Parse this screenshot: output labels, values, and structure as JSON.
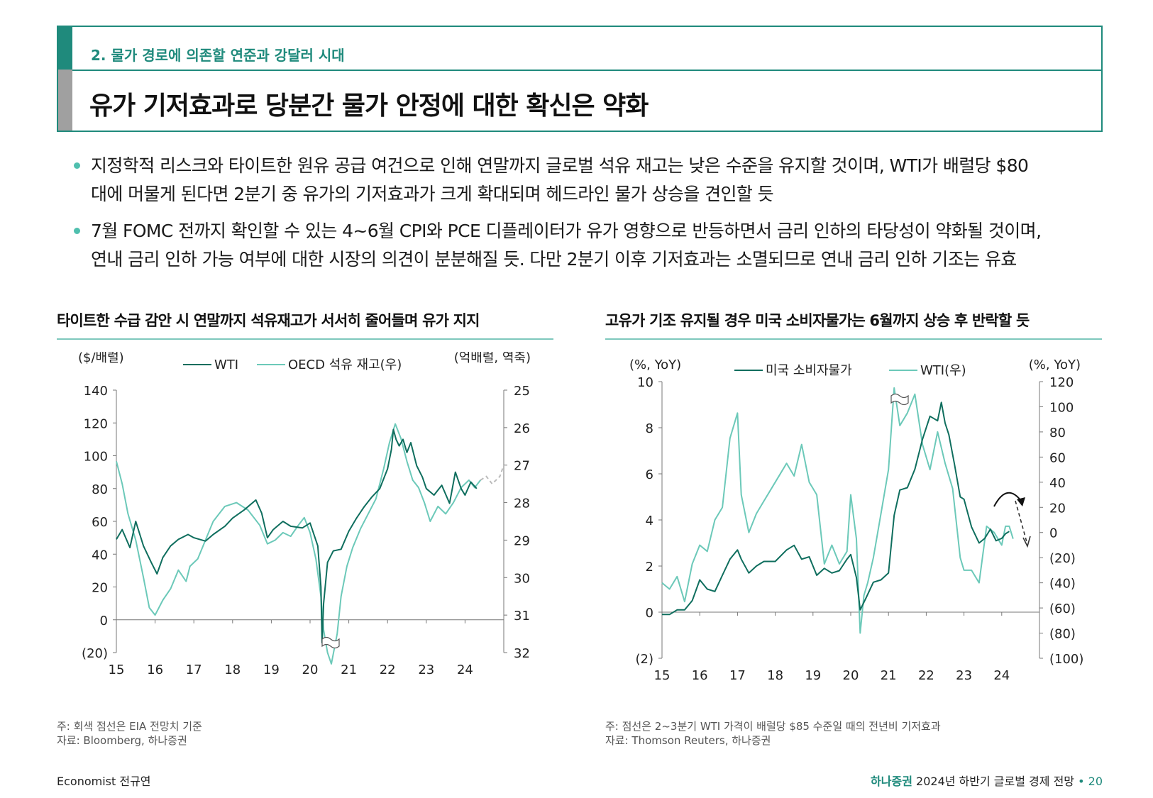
{
  "header": {
    "section": "2. 물가 경로에 의존할 연준과 강달러 시대",
    "title": "유가 기저효과로 당분간 물가 안정에 대한 확신은 약화"
  },
  "bullets": [
    {
      "line1": "지정학적 리스크와 타이트한 원유 공급 여건으로 인해 연말까지 글로벌 석유 재고는 낮은 수준을 유지할 것이며, WTI가 배럴당 $80",
      "line2": "대에 머물게 된다면 2분기 중 유가의 기저효과가 크게 확대되며 헤드라인 물가 상승을 견인할 듯"
    },
    {
      "line1": "7월 FOMC 전까지 확인할 수 있는 4~6월 CPI와 PCE 디플레이터가 유가 영향으로 반등하면서 금리 인하의 타당성이 약화될 것이며,",
      "line2": "연내 금리 인하 가능 여부에 대한 시장의 의견이 분분해질 듯. 다만 2분기 이후 기저효과는 소멸되므로 연내 금리 인하 기조는 유효"
    }
  ],
  "colors": {
    "accent": "#1f8a7c",
    "dark_series": "#0f6e5e",
    "light_series": "#6cc9b9",
    "forecast": "#bbbbbb"
  },
  "chart_data": [
    {
      "type": "line",
      "title": "타이트한 수급 감안 시 연말까지 석유재고가 서서히 줄어들며 유가 지지",
      "left_unit": "($/배럴)",
      "right_unit": "(억배럴, 역축)",
      "x_ticks": [
        "15",
        "16",
        "17",
        "18",
        "19",
        "20",
        "21",
        "22",
        "23",
        "24"
      ],
      "xlim": [
        15,
        25
      ],
      "y_left_ticks": [
        "140",
        "120",
        "100",
        "80",
        "60",
        "40",
        "20",
        "0",
        "(20)"
      ],
      "ylim_left": [
        -20,
        140
      ],
      "y_right_ticks": [
        "25",
        "26",
        "27",
        "28",
        "29",
        "30",
        "31",
        "32"
      ],
      "ylim_right_inverted": [
        25,
        32
      ],
      "legend": [
        "WTI",
        "OECD 석유 재고(우)"
      ],
      "series": [
        {
          "name": "WTI",
          "axis": "left",
          "x": [
            15.0,
            15.15,
            15.35,
            15.5,
            15.7,
            15.9,
            16.05,
            16.2,
            16.4,
            16.6,
            16.85,
            17.0,
            17.3,
            17.5,
            17.8,
            18.0,
            18.3,
            18.6,
            18.75,
            18.9,
            19.05,
            19.3,
            19.5,
            19.8,
            20.0,
            20.2,
            20.28,
            20.31,
            20.35,
            20.45,
            20.6,
            20.8,
            21.0,
            21.2,
            21.4,
            21.6,
            21.8,
            22.0,
            22.1,
            22.15,
            22.22,
            22.3,
            22.4,
            22.5,
            22.6,
            22.75,
            22.9,
            23.0,
            23.2,
            23.4,
            23.6,
            23.75,
            23.9,
            24.0,
            24.15,
            24.3
          ],
          "y": [
            49,
            55,
            44,
            60,
            45,
            35,
            28,
            38,
            45,
            49,
            52,
            50,
            48,
            52,
            57,
            62,
            67,
            73,
            65,
            50,
            55,
            60,
            57,
            56,
            59,
            45,
            20,
            -14,
            10,
            35,
            42,
            43,
            54,
            62,
            69,
            75,
            80,
            92,
            104,
            116,
            110,
            106,
            110,
            102,
            108,
            94,
            87,
            80,
            76,
            82,
            71,
            90,
            80,
            76,
            84,
            80
          ]
        },
        {
          "name": "OECD 석유 재고(우)",
          "axis": "right",
          "x": [
            15.0,
            15.15,
            15.3,
            15.5,
            15.7,
            15.85,
            16.0,
            16.2,
            16.4,
            16.6,
            16.8,
            16.9,
            17.1,
            17.3,
            17.5,
            17.8,
            18.1,
            18.4,
            18.7,
            18.9,
            19.1,
            19.3,
            19.5,
            19.7,
            19.85,
            20.0,
            20.15,
            20.28,
            20.35,
            20.45,
            20.55,
            20.7,
            20.8,
            20.95,
            21.1,
            21.3,
            21.5,
            21.7,
            21.9,
            22.05,
            22.2,
            22.35,
            22.5,
            22.65,
            22.8,
            22.95,
            23.1,
            23.3,
            23.5,
            23.7,
            23.9,
            24.1,
            24.25,
            24.4
          ],
          "y": [
            26.9,
            27.5,
            28.3,
            29.0,
            30.0,
            30.8,
            31.0,
            30.6,
            30.3,
            29.8,
            30.1,
            29.7,
            29.5,
            29.0,
            28.5,
            28.1,
            28.0,
            28.2,
            28.6,
            29.1,
            29.0,
            28.8,
            28.9,
            28.6,
            28.4,
            28.8,
            29.5,
            30.5,
            31.4,
            32.0,
            32.3,
            31.5,
            30.5,
            29.7,
            29.2,
            28.7,
            28.3,
            27.9,
            27.1,
            26.4,
            25.9,
            26.3,
            26.9,
            27.4,
            27.6,
            28.0,
            28.5,
            28.1,
            28.3,
            28.0,
            27.6,
            27.4,
            27.6,
            27.4
          ]
        },
        {
          "name": "EIA 전망치",
          "axis": "right",
          "forecast": true,
          "x": [
            24.4,
            24.55,
            24.7,
            24.9,
            25.0
          ],
          "y": [
            27.4,
            27.3,
            27.5,
            27.3,
            27.0
          ]
        }
      ],
      "note": "주: 회색 점선은 EIA 전망치 기준",
      "source": "자료: Bloomberg, 하나증권"
    },
    {
      "type": "line",
      "title": "고유가 기조 유지될 경우 미국 소비자물가는 6월까지 상승 후 반락할 듯",
      "left_unit": "(%, YoY)",
      "right_unit": "(%, YoY)",
      "x_ticks": [
        "15",
        "16",
        "17",
        "18",
        "19",
        "20",
        "21",
        "22",
        "23",
        "24"
      ],
      "xlim": [
        15,
        25
      ],
      "y_left_ticks": [
        "10",
        "8",
        "6",
        "4",
        "2",
        "0",
        "(2)"
      ],
      "ylim_left": [
        -2,
        10
      ],
      "y_right_ticks": [
        "120",
        "100",
        "80",
        "60",
        "40",
        "20",
        "0",
        "(20)",
        "(40)",
        "(60)",
        "(80)",
        "(100)"
      ],
      "ylim_right": [
        -100,
        120
      ],
      "legend": [
        "미국 소비자물가",
        "WTI(우)"
      ],
      "series": [
        {
          "name": "미국 소비자물가",
          "axis": "left",
          "x": [
            15.0,
            15.2,
            15.4,
            15.6,
            15.8,
            16.0,
            16.2,
            16.4,
            16.6,
            16.8,
            17.0,
            17.1,
            17.3,
            17.5,
            17.7,
            18.0,
            18.3,
            18.5,
            18.7,
            18.9,
            19.1,
            19.3,
            19.5,
            19.7,
            19.9,
            20.0,
            20.15,
            20.25,
            20.4,
            20.6,
            20.8,
            21.0,
            21.15,
            21.3,
            21.5,
            21.7,
            21.9,
            22.1,
            22.3,
            22.4,
            22.5,
            22.6,
            22.75,
            22.9,
            23.0,
            23.2,
            23.4,
            23.55,
            23.7,
            23.85,
            24.0,
            24.1,
            24.2
          ],
          "y": [
            -0.1,
            -0.1,
            0.1,
            0.1,
            0.5,
            1.4,
            1.0,
            0.9,
            1.6,
            2.3,
            2.7,
            2.3,
            1.7,
            2.0,
            2.2,
            2.2,
            2.7,
            2.9,
            2.3,
            2.4,
            1.6,
            1.9,
            1.7,
            1.8,
            2.3,
            2.5,
            1.5,
            0.1,
            0.6,
            1.3,
            1.4,
            1.7,
            4.2,
            5.3,
            5.4,
            6.2,
            7.5,
            8.5,
            8.3,
            9.1,
            8.2,
            7.7,
            6.4,
            5.0,
            4.9,
            3.7,
            3.0,
            3.2,
            3.6,
            3.1,
            3.2,
            3.4,
            3.5
          ]
        },
        {
          "name": "WTI(우)",
          "axis": "right",
          "x": [
            15.0,
            15.2,
            15.4,
            15.6,
            15.8,
            16.0,
            16.2,
            16.4,
            16.6,
            16.8,
            17.0,
            17.1,
            17.3,
            17.5,
            17.7,
            18.0,
            18.3,
            18.5,
            18.7,
            18.9,
            19.1,
            19.3,
            19.5,
            19.7,
            19.9,
            20.0,
            20.15,
            20.25,
            20.35,
            20.45,
            20.6,
            20.8,
            21.0,
            21.15,
            21.3,
            21.5,
            21.7,
            21.9,
            22.1,
            22.3,
            22.5,
            22.7,
            22.9,
            23.0,
            23.2,
            23.4,
            23.6,
            23.8,
            24.0,
            24.1,
            24.2,
            24.3
          ],
          "y": [
            -40,
            -45,
            -35,
            -55,
            -25,
            -10,
            -15,
            10,
            20,
            75,
            95,
            30,
            0,
            15,
            25,
            40,
            55,
            45,
            70,
            40,
            30,
            -25,
            -10,
            -25,
            -15,
            30,
            -5,
            -80,
            -50,
            -40,
            -20,
            15,
            50,
            115,
            85,
            95,
            110,
            70,
            50,
            80,
            55,
            35,
            -20,
            -30,
            -30,
            -40,
            5,
            0,
            -10,
            5,
            5,
            -5
          ]
        }
      ],
      "note": "주: 점선은 2~3분기 WTI 가격이 배럴당 $85 수준일 때의 전년비 기저효과",
      "source": "자료: Thomson Reuters, 하나증권"
    }
  ],
  "footer": {
    "author": "Economist 전규연",
    "brand": "하나증권",
    "report": "2024년 하반기 글로벌 경제 전망",
    "sep": "•",
    "page": "20"
  }
}
